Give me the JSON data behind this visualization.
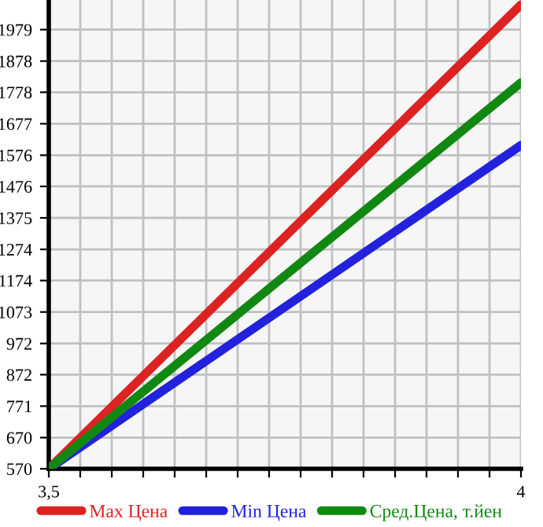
{
  "chart_data": {
    "type": "line",
    "x": [
      3.5,
      4
    ],
    "series": [
      {
        "name": "Max Цена",
        "color": "#dd2222",
        "values": [
          570,
          2059
        ]
      },
      {
        "name": "Min Цена",
        "color": "#2222dd",
        "values": [
          570,
          1608
        ]
      },
      {
        "name": "Сред.Цена, т.йен",
        "color": "#118811",
        "values": [
          570,
          1809
        ]
      }
    ],
    "xlim": [
      3.5,
      4
    ],
    "xticks": [
      {
        "value": 3.5,
        "label": "3,5"
      },
      {
        "value": 3.5333,
        "label": null
      },
      {
        "value": 3.5667,
        "label": null
      },
      {
        "value": 3.6,
        "label": null
      },
      {
        "value": 3.6333,
        "label": null
      },
      {
        "value": 3.6667,
        "label": null
      },
      {
        "value": 3.7,
        "label": null
      },
      {
        "value": 3.7333,
        "label": null
      },
      {
        "value": 3.7667,
        "label": null
      },
      {
        "value": 3.8,
        "label": null
      },
      {
        "value": 3.8333,
        "label": null
      },
      {
        "value": 3.8667,
        "label": null
      },
      {
        "value": 3.9,
        "label": null
      },
      {
        "value": 3.9333,
        "label": null
      },
      {
        "value": 3.9667,
        "label": null
      },
      {
        "value": 4,
        "label": "4"
      }
    ],
    "ylim": [
      570,
      2074
    ],
    "yticks": [
      570,
      670,
      771,
      872,
      972,
      1073,
      1174,
      1274,
      1375,
      1476,
      1576,
      1677,
      1778,
      1878,
      1979
    ],
    "grid": true,
    "legend": "bottom",
    "marker": "none",
    "line_style": "solid"
  }
}
